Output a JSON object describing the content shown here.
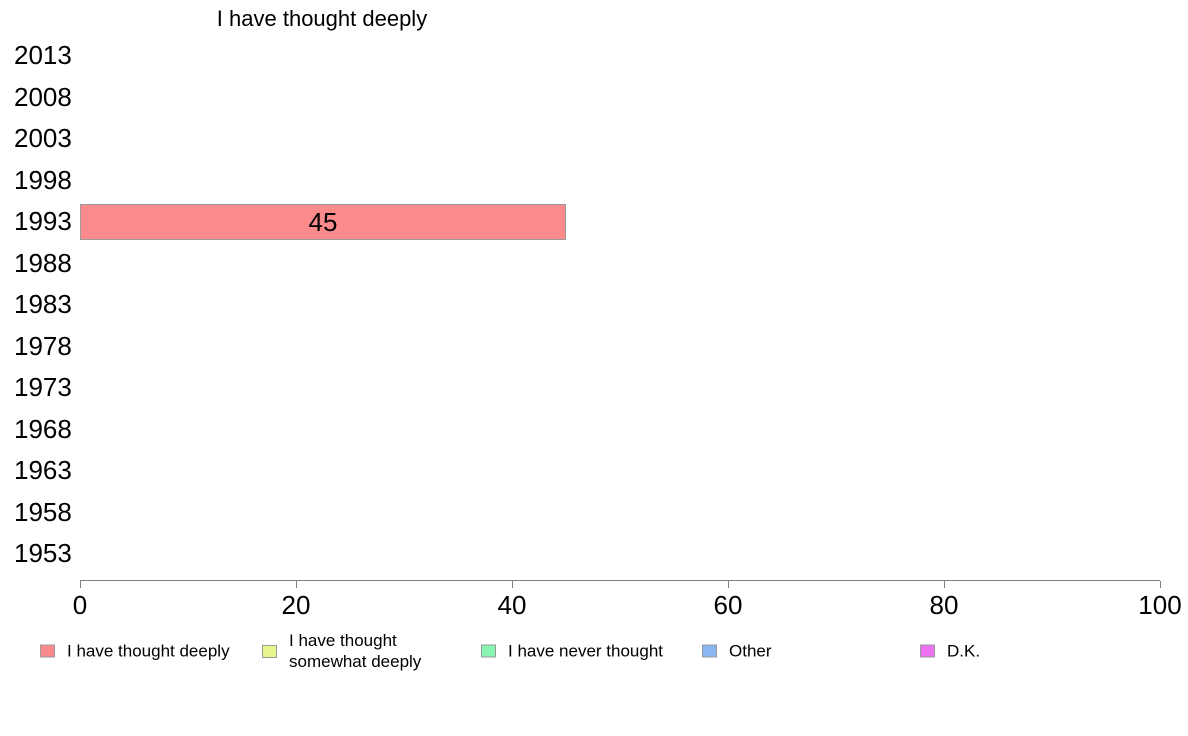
{
  "title": "I have thought deeply",
  "chart_data": {
    "type": "bar",
    "orientation": "horizontal",
    "title": "I have thought deeply",
    "categories": [
      "2013",
      "2008",
      "2003",
      "1998",
      "1993",
      "1988",
      "1983",
      "1978",
      "1973",
      "1968",
      "1963",
      "1958",
      "1953"
    ],
    "series": [
      {
        "name": "I have thought deeply",
        "color": "#FB8A8A",
        "values": [
          null,
          null,
          null,
          null,
          45,
          null,
          null,
          null,
          null,
          null,
          null,
          null,
          null
        ]
      }
    ],
    "bar_labels": [
      "",
      "",
      "",
      "",
      "45",
      "",
      "",
      "",
      "",
      "",
      "",
      "",
      ""
    ],
    "xlabel": "",
    "ylabel": "",
    "xlim": [
      0,
      100
    ],
    "xticks": [
      0,
      20,
      40,
      60,
      80,
      100
    ],
    "grid": false,
    "legend_position": "bottom"
  },
  "legend": {
    "items": [
      {
        "label": "I have thought deeply",
        "lines": [
          "I have thought deeply"
        ],
        "color": "#FB8A8A"
      },
      {
        "label": "I have thought somewhat deeply",
        "lines": [
          "I have thought",
          "somewhat deeply"
        ],
        "color": "#E8F48C"
      },
      {
        "label": "I have never thought",
        "lines": [
          "I have never thought"
        ],
        "color": "#8AF5B2"
      },
      {
        "label": "Other",
        "lines": [
          "Other"
        ],
        "color": "#89B7F4"
      },
      {
        "label": "D.K.",
        "lines": [
          "D.K."
        ],
        "color": "#EC72F2"
      }
    ]
  },
  "colors": {
    "axis": "#808080",
    "bar_border": "#999999",
    "text": "#000000",
    "background": "#FFFFFF"
  }
}
